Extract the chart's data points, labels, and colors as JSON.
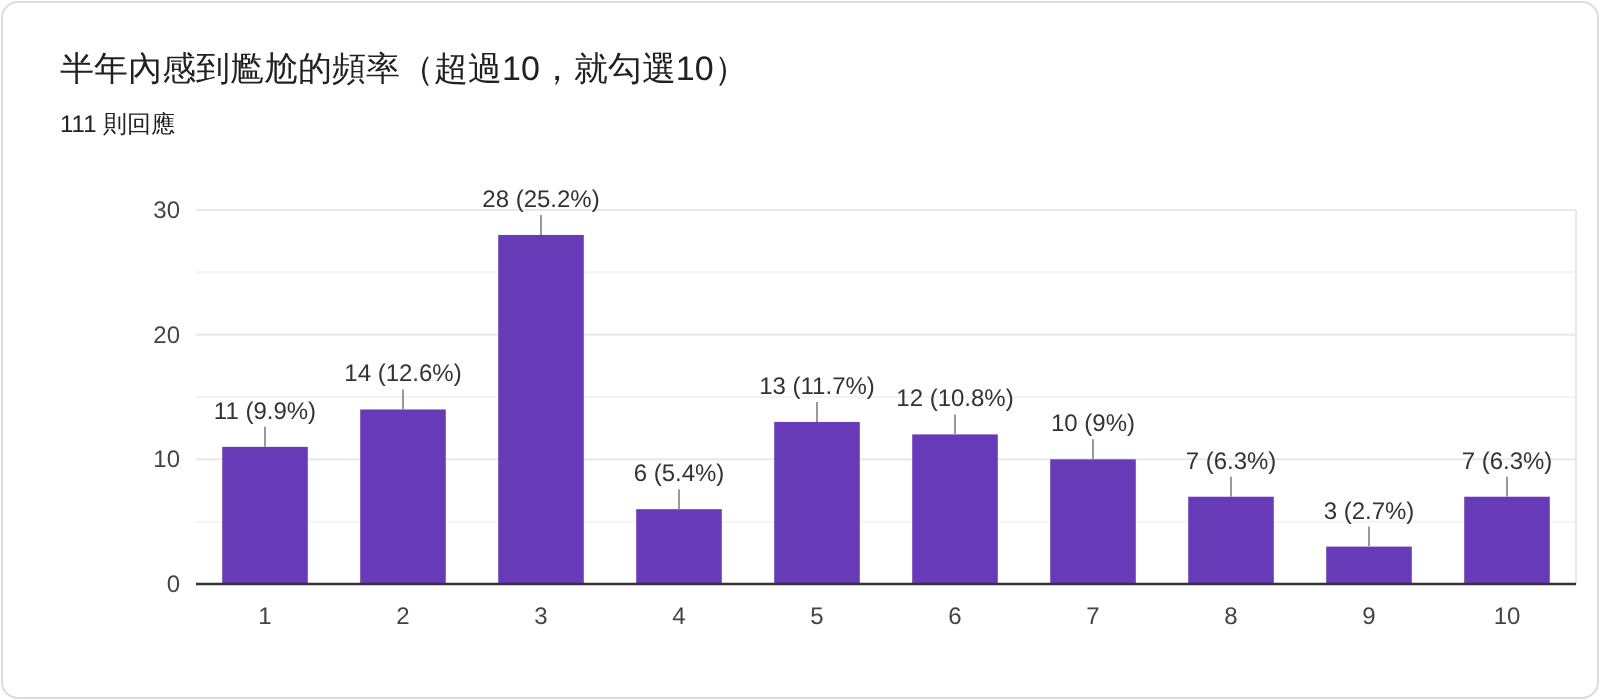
{
  "chart_data": {
    "type": "bar",
    "title": "半年內感到尷尬的頻率（超過10，就勾選10）",
    "subtitle": "111 則回應",
    "categories": [
      "1",
      "2",
      "3",
      "4",
      "5",
      "6",
      "7",
      "8",
      "9",
      "10"
    ],
    "values": [
      11,
      14,
      28,
      6,
      13,
      12,
      10,
      7,
      3,
      7
    ],
    "value_labels": [
      "11 (9.9%)",
      "14 (12.6%)",
      "28 (25.2%)",
      "6 (5.4%)",
      "13 (11.7%)",
      "12 (10.8%)",
      "10 (9%)",
      "7 (6.3%)",
      "3 (2.7%)",
      "7 (6.3%)"
    ],
    "color": "#673ab7",
    "ylim": [
      0,
      30
    ],
    "yticks": [
      0,
      {
        "value": 5,
        "label": null
      },
      10,
      {
        "value": 15,
        "label": null
      },
      20,
      {
        "value": 25,
        "label": null
      },
      30
    ],
    "grid": "y"
  }
}
